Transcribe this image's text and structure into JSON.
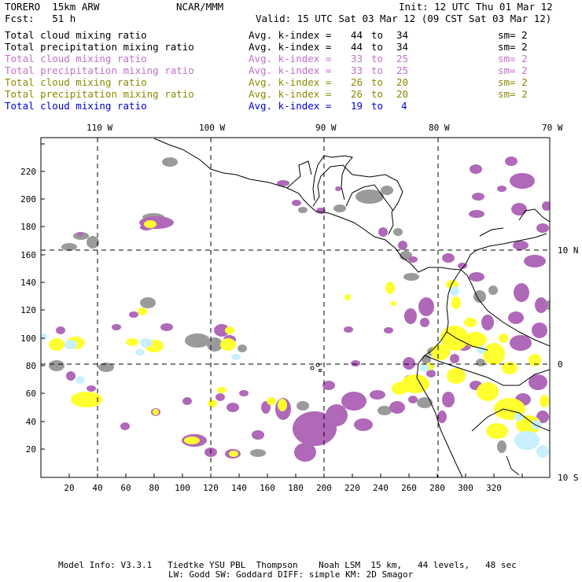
{
  "header": {
    "model": "TORERO  15km ARW",
    "org": "NCAR/MMM",
    "init": "Init: 12 UTC Thu 01 Mar 12",
    "fcst": "Fcst:   51 h",
    "valid": "Valid: 15 UTC Sat 03 Mar 12 (09 CST Sat 03 Mar 12)"
  },
  "legend": [
    {
      "field": "Total cloud mixing ratio",
      "avg": "Avg. k-index =",
      "from": "44",
      "to": "34",
      "sm": "sm= 2",
      "color": "#000000"
    },
    {
      "field": "Total precipitation mixing ratio",
      "avg": "Avg. k-index =",
      "from": "44",
      "to": "34",
      "sm": "sm= 2",
      "color": "#000000"
    },
    {
      "field": "Total cloud mixing ratio",
      "avg": "Avg. k-index =",
      "from": "33",
      "to": "25",
      "sm": "sm= 2",
      "color": "#c070c8"
    },
    {
      "field": "Total precipitation mixing ratio",
      "avg": "Avg. k-index =",
      "from": "33",
      "to": "25",
      "sm": "sm= 2",
      "color": "#c070c8"
    },
    {
      "field": "Total cloud mixing ratio",
      "avg": "Avg. k-index =",
      "from": "26",
      "to": "20",
      "sm": "sm= 2",
      "color": "#8a8a00"
    },
    {
      "field": "Total precipitation mixing ratio",
      "avg": "Avg. k-index =",
      "from": "26",
      "to": "20",
      "sm": "sm= 2",
      "color": "#8a8a00"
    },
    {
      "field": "Total cloud mixing ratio",
      "avg": "Avg. k-index =",
      "from": "19",
      "to": "4",
      "sm": "",
      "color": "#0000d0"
    }
  ],
  "map": {
    "top_lon_labels": [
      "110 W",
      "100 W",
      "90 W",
      "80 W",
      "70 W"
    ],
    "right_lat_labels": [
      "10 N",
      "0",
      "10 S"
    ],
    "y_ticks": [
      "20",
      "40",
      "60",
      "80",
      "100",
      "120",
      "140",
      "160",
      "180",
      "200",
      "220"
    ],
    "x_ticks": [
      "20",
      "40",
      "60",
      "80",
      "100",
      "120",
      "140",
      "160",
      "180",
      "200",
      "220",
      "240",
      "260",
      "280",
      "300",
      "320"
    ],
    "colors": {
      "grey_cloud": "#9a9a9a",
      "purple_cloud": "#b068b8",
      "yellow_cloud": "#ffff30",
      "cyan_cloud": "#c8f0ff",
      "coast": "#000000"
    }
  },
  "footer": {
    "line1": "Model Info: V3.3.1   Tiedtke YSU PBL  Thompson    Noah LSM  15 km,   44 levels,   48 sec",
    "line2": "LW: Godd SW: Goddard DIFF: simple KM: 2D Smagor"
  }
}
